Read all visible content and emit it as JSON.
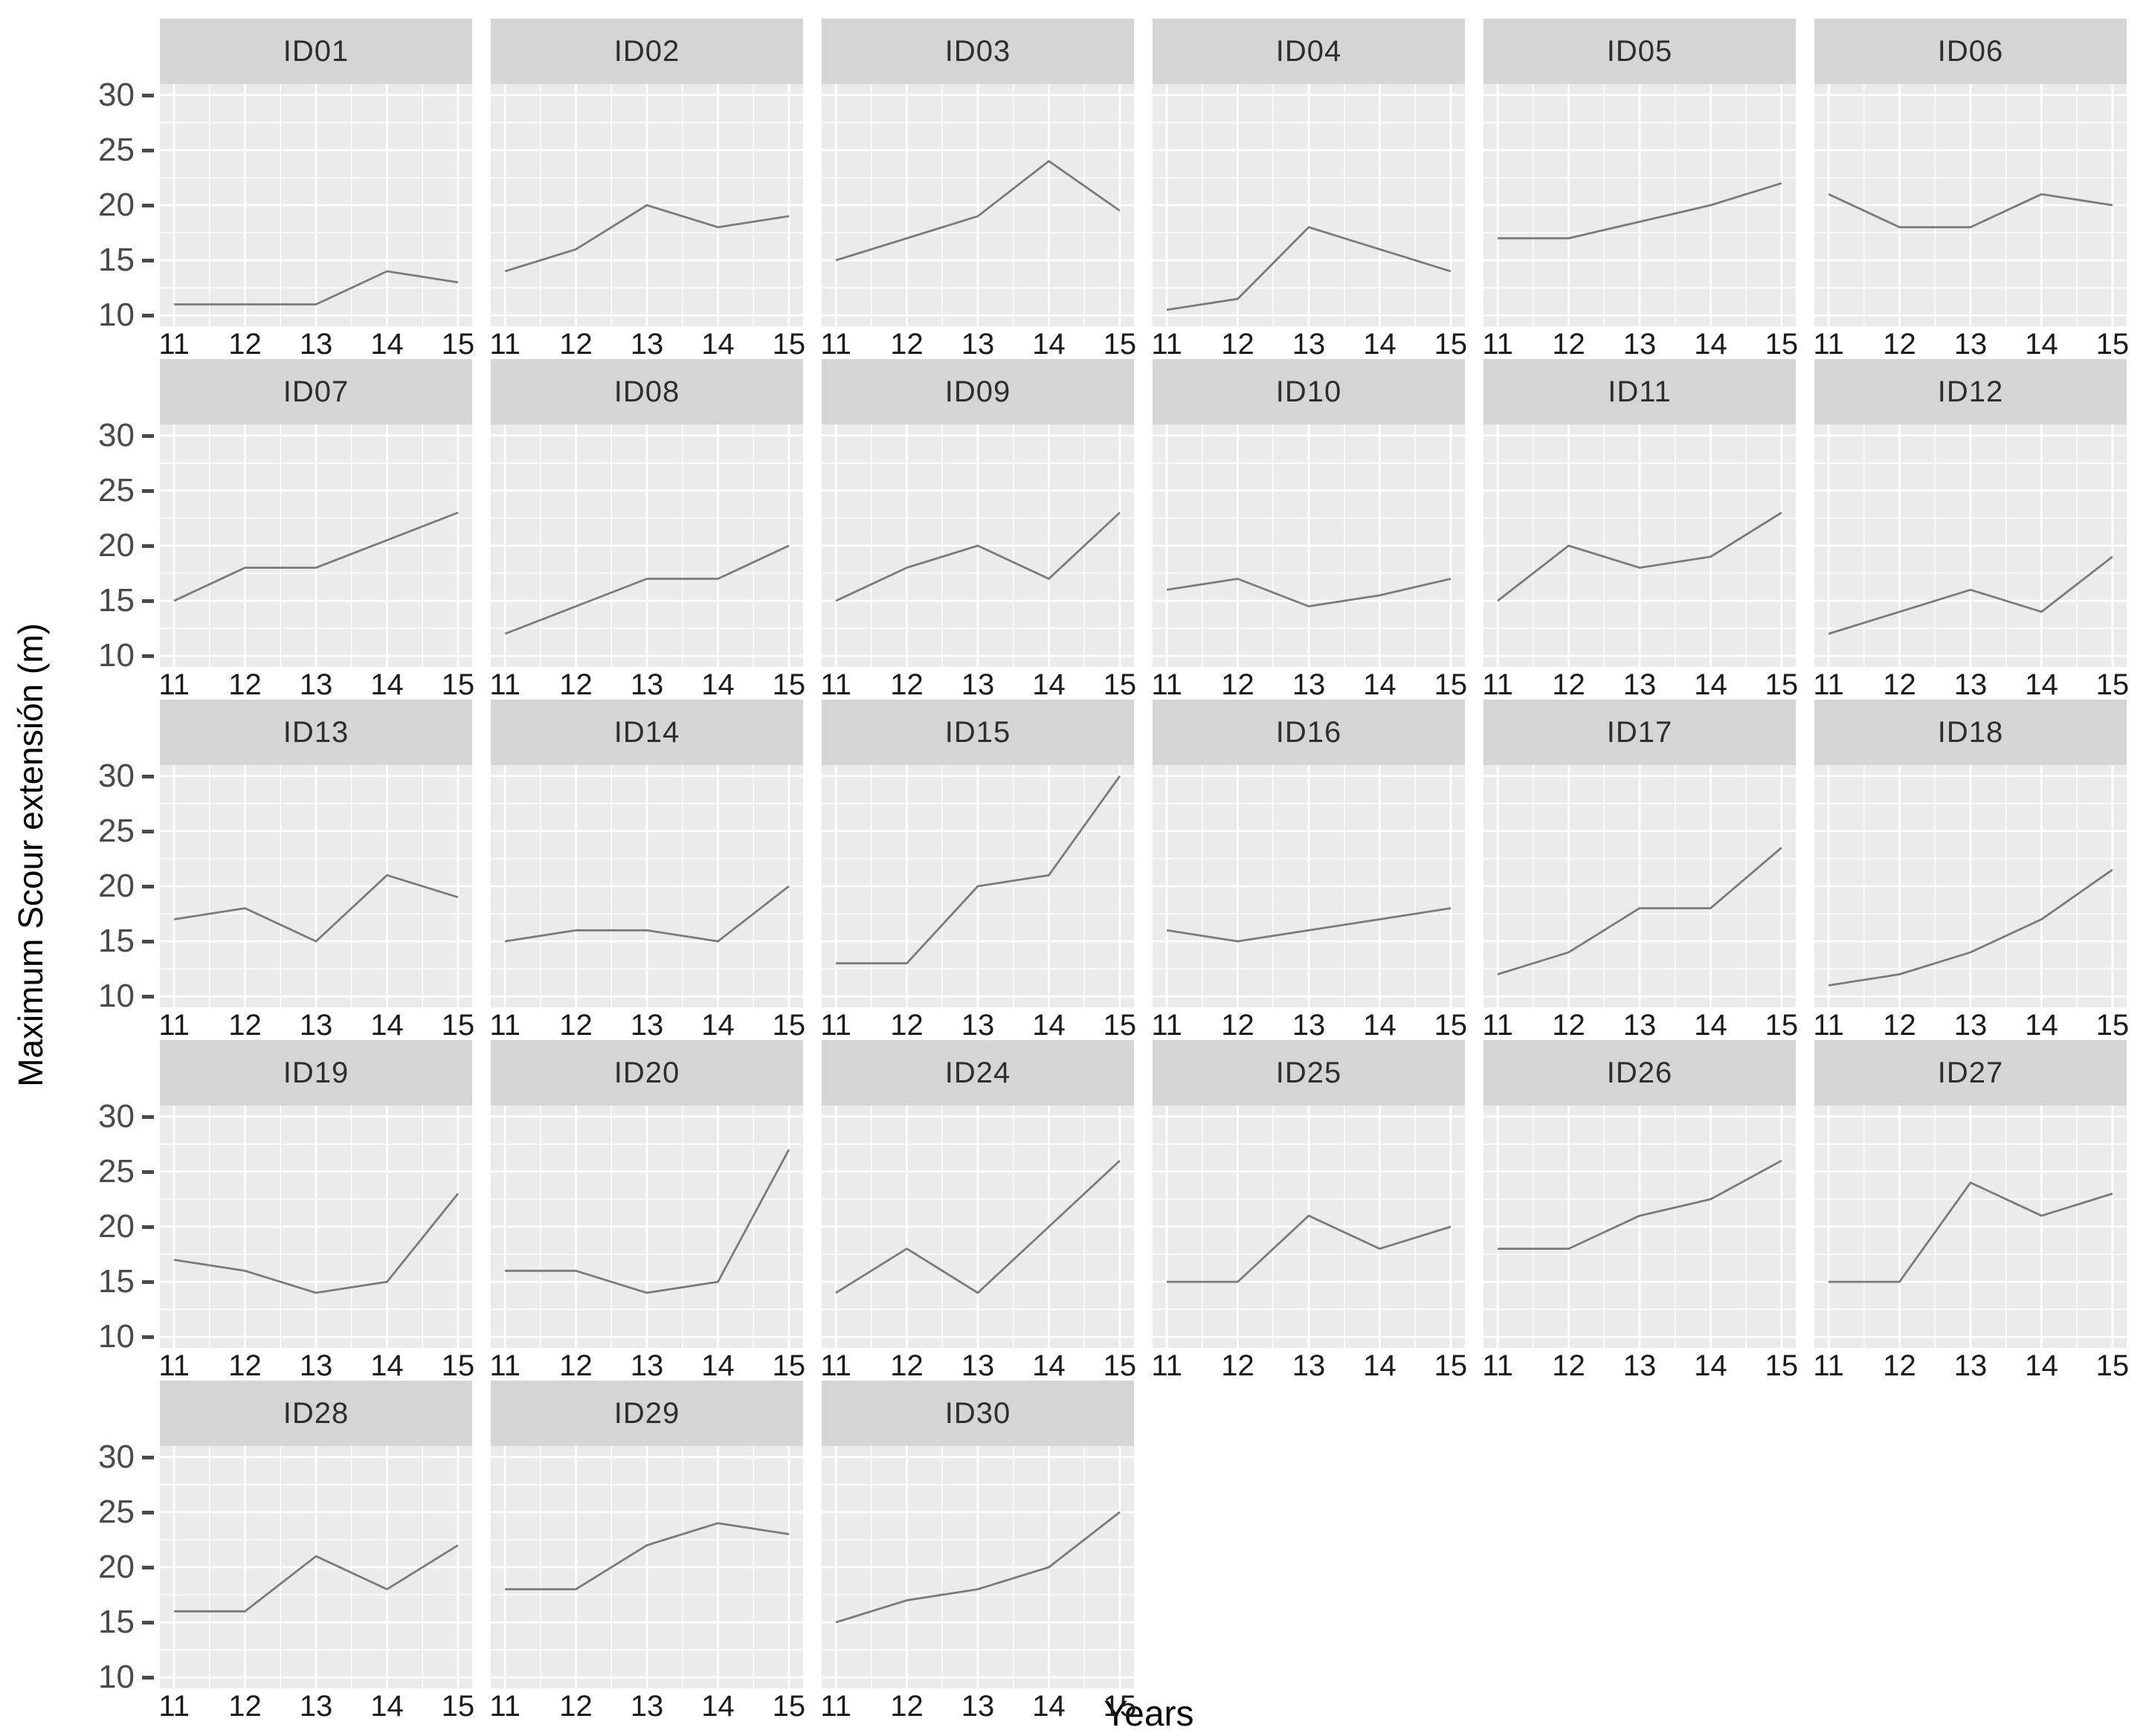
{
  "figure": {
    "ylabel": "Maximum Scour extensión (m)",
    "xlabel": "Years"
  },
  "chart_data": {
    "type": "line",
    "title": "",
    "xlabel": "Years",
    "ylabel": "Maximum Scour extensión (m)",
    "x": [
      11,
      12,
      13,
      14,
      15
    ],
    "yticks": [
      30,
      25,
      20,
      15,
      10
    ],
    "ylim": [
      9,
      31
    ],
    "xlim": [
      10.8,
      15.2
    ],
    "grid": true,
    "legend_position": "none",
    "facet_layout": {
      "columns": 6,
      "rows": 5
    },
    "colors": {
      "panel_bg": "#ebebeb",
      "strip_bg": "#d5d5d5",
      "gridline": "#ffffff",
      "line": "#7b7b7b",
      "tick_text": "#4a4a4a",
      "strip_text": "#2e2e2e"
    },
    "series": [
      {
        "name": "ID01",
        "values": [
          11,
          11,
          11,
          14,
          13
        ]
      },
      {
        "name": "ID02",
        "values": [
          14,
          16,
          20,
          18,
          19
        ]
      },
      {
        "name": "ID03",
        "values": [
          15,
          17,
          19,
          24,
          19.5
        ]
      },
      {
        "name": "ID04",
        "values": [
          10.5,
          11.5,
          18,
          16,
          14
        ]
      },
      {
        "name": "ID05",
        "values": [
          17,
          17,
          18.5,
          20,
          22
        ]
      },
      {
        "name": "ID06",
        "values": [
          21,
          18,
          18,
          21,
          20
        ]
      },
      {
        "name": "ID07",
        "values": [
          15,
          18,
          18,
          20.5,
          23
        ]
      },
      {
        "name": "ID08",
        "values": [
          12,
          14.5,
          17,
          17,
          20
        ]
      },
      {
        "name": "ID09",
        "values": [
          15,
          18,
          20,
          17,
          23
        ]
      },
      {
        "name": "ID10",
        "values": [
          16,
          17,
          14.5,
          15.5,
          17
        ]
      },
      {
        "name": "ID11",
        "values": [
          15,
          20,
          18,
          19,
          23
        ]
      },
      {
        "name": "ID12",
        "values": [
          12,
          14,
          16,
          14,
          19
        ]
      },
      {
        "name": "ID13",
        "values": [
          17,
          18,
          15,
          21,
          19
        ]
      },
      {
        "name": "ID14",
        "values": [
          15,
          16,
          16,
          15,
          20
        ]
      },
      {
        "name": "ID15",
        "values": [
          13,
          13,
          20,
          21,
          30
        ]
      },
      {
        "name": "ID16",
        "values": [
          16,
          15,
          16,
          17,
          18
        ]
      },
      {
        "name": "ID17",
        "values": [
          12,
          14,
          18,
          18,
          23.5
        ]
      },
      {
        "name": "ID18",
        "values": [
          11,
          12,
          14,
          17,
          21.5
        ]
      },
      {
        "name": "ID19",
        "values": [
          17,
          16,
          14,
          15,
          23
        ]
      },
      {
        "name": "ID20",
        "values": [
          16,
          16,
          14,
          15,
          27
        ]
      },
      {
        "name": "ID24",
        "values": [
          14,
          18,
          14,
          20,
          26
        ]
      },
      {
        "name": "ID25",
        "values": [
          15,
          15,
          21,
          18,
          20
        ]
      },
      {
        "name": "ID26",
        "values": [
          18,
          18,
          21,
          22.5,
          26
        ]
      },
      {
        "name": "ID27",
        "values": [
          15,
          15,
          24,
          21,
          23
        ]
      },
      {
        "name": "ID28",
        "values": [
          16,
          16,
          21,
          18,
          22
        ]
      },
      {
        "name": "ID29",
        "values": [
          18,
          18,
          22,
          24,
          23
        ]
      },
      {
        "name": "ID30",
        "values": [
          15,
          17,
          18,
          20,
          25
        ]
      }
    ]
  }
}
